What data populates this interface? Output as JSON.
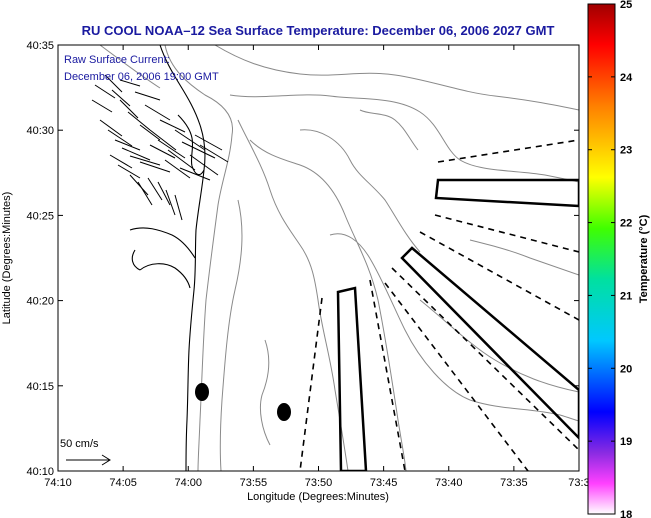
{
  "title": "RU COOL  NOAA–12  Sea Surface Temperature:  December 06, 2006 2027 GMT",
  "current_label": "Raw Surface Current:",
  "current_time": "December 06, 2006 19:00 GMT",
  "scale_label": "50 cm/s",
  "x_axis": {
    "label": "Longitude (Degrees:Minutes)",
    "ticks": [
      "74:10",
      "74:05",
      "74:00",
      "73:55",
      "73:50",
      "73:45",
      "73:40",
      "73:35",
      "73:3"
    ]
  },
  "y_axis": {
    "label": "Latitude (Degrees:Minutes)",
    "ticks": [
      "40:35",
      "40:30",
      "40:25",
      "40:20",
      "40:15",
      "40:10"
    ]
  },
  "colorbar": {
    "label": "Temperature (°C)",
    "min": 18,
    "max": 25,
    "ticks": [
      "25",
      "24",
      "23",
      "22",
      "21",
      "20",
      "19",
      "18"
    ]
  }
}
